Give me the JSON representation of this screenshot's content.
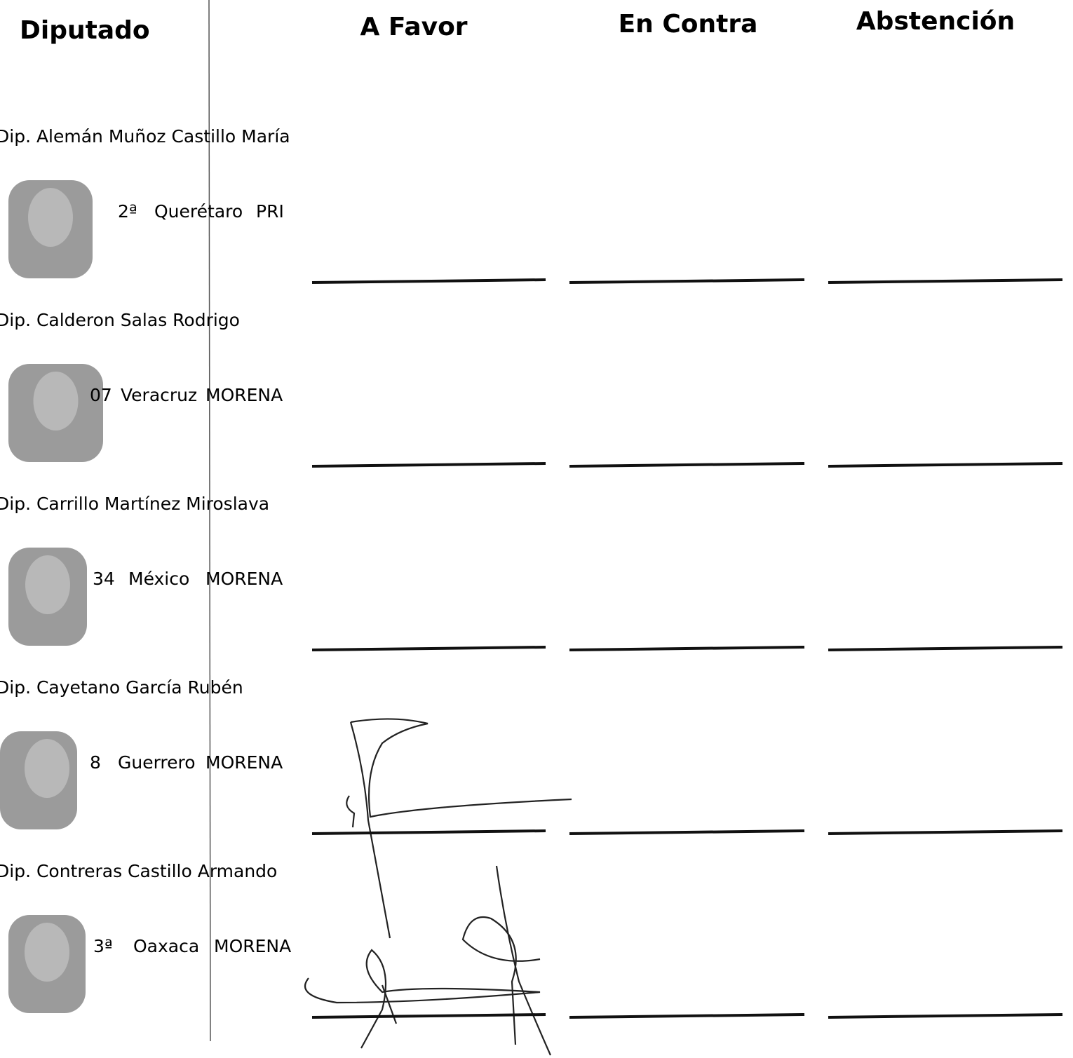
{
  "header": {
    "columns": [
      "Diputado",
      "A Favor",
      "En Contra",
      "Abstención"
    ]
  },
  "rows": [
    {
      "name": "Dip. Alemán Muñoz Castillo María",
      "district": "2ª",
      "state": "Querétaro",
      "party": "PRI"
    },
    {
      "name": "Dip. Calderon Salas Rodrigo",
      "district": "07",
      "state": "Veracruz",
      "party": "MORENA"
    },
    {
      "name": "Dip. Carrillo Martínez Miroslava",
      "district": "34",
      "state": "México",
      "party": "MORENA"
    },
    {
      "name": "Dip. Cayetano García Rubén",
      "district": "8",
      "state": "Guerrero",
      "party": "MORENA"
    },
    {
      "name": "Dip. Contreras Castillo Armando",
      "district": "3ª",
      "state": "Oaxaca",
      "party": "MORENA"
    }
  ]
}
